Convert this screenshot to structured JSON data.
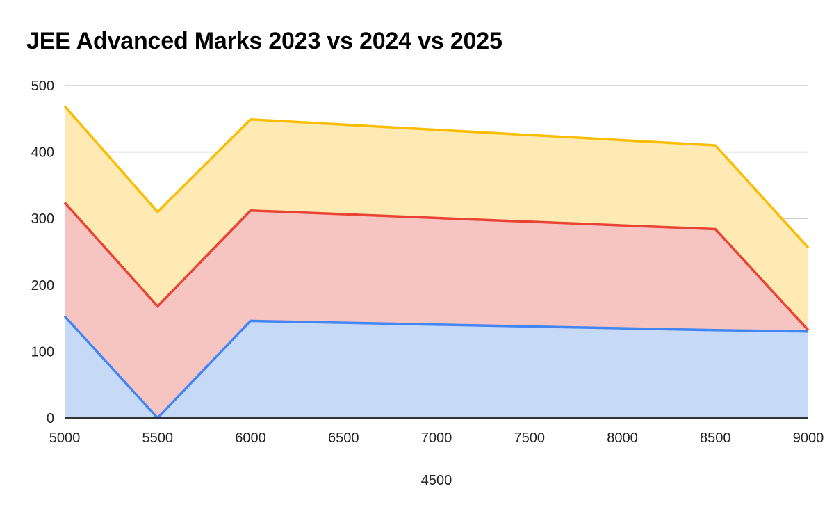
{
  "chart_data": {
    "type": "area",
    "stacked": true,
    "title": "JEE Advanced Marks 2023 vs 2024 vs 2025",
    "xlabel": "4500",
    "ylabel": "",
    "x": [
      5000,
      5500,
      6000,
      8500,
      9000
    ],
    "x_ticks": [
      "5000",
      "5500",
      "6000",
      "6500",
      "7000",
      "7500",
      "8000",
      "8500",
      "9000"
    ],
    "xlim": [
      5000,
      9000
    ],
    "y_ticks": [
      "0",
      "100",
      "200",
      "300",
      "400",
      "500"
    ],
    "ylim": [
      0,
      500
    ],
    "grid": true,
    "legend": "none",
    "series": [
      {
        "name": "2023",
        "color": "#4285f4",
        "fill": "#c6daf8",
        "values": [
          153,
          0,
          146,
          132,
          130
        ]
      },
      {
        "name": "2024",
        "color": "#ea4335",
        "fill": "#f7c5c1",
        "values": [
          171,
          168,
          166,
          152,
          2
        ]
      },
      {
        "name": "2025",
        "color": "#fbbc04",
        "fill": "#feeab2",
        "values": [
          145,
          142,
          137,
          126,
          124
        ]
      }
    ],
    "stacked_tops": {
      "2023": [
        153,
        0,
        146,
        132,
        130
      ],
      "2024": [
        324,
        168,
        312,
        284,
        132
      ],
      "2025": [
        469,
        310,
        449,
        410,
        256
      ]
    }
  }
}
